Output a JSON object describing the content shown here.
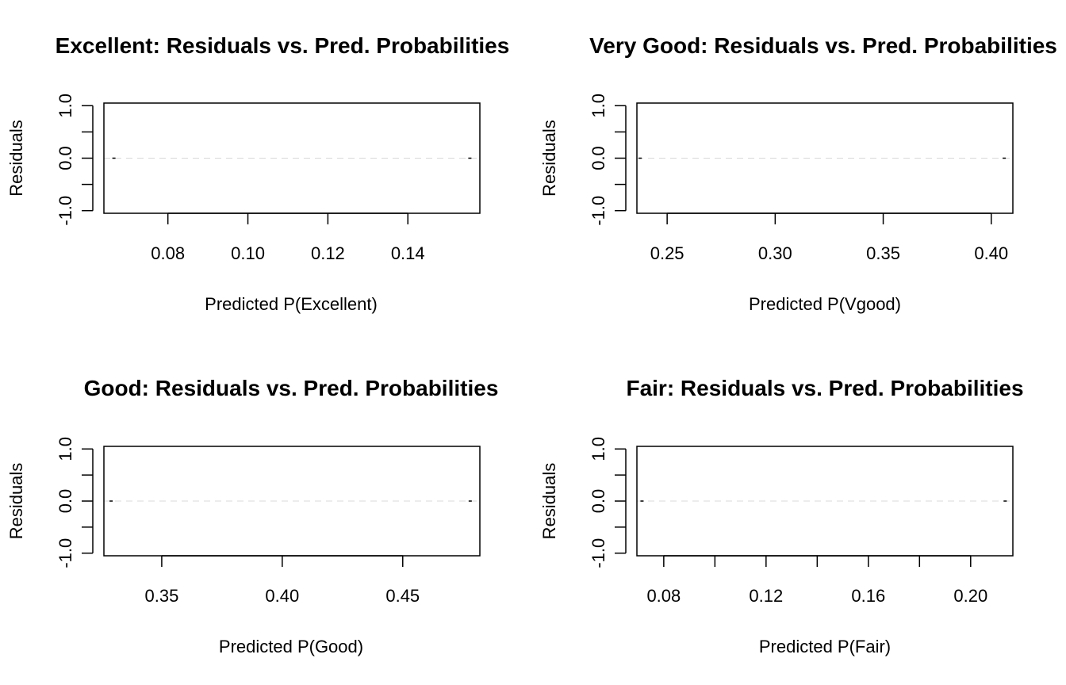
{
  "chart_data": [
    {
      "type": "scatter",
      "title": "Excellent: Residuals vs. Pred. Probabilities",
      "xlabel": "Predicted P(Excellent)",
      "ylabel": "Residuals",
      "xlim": [
        0.064,
        0.158
      ],
      "ylim": [
        -1.05,
        1.05
      ],
      "x_ticks": [
        0.08,
        0.1,
        0.12,
        0.14
      ],
      "x_tick_labels": [
        "0.08",
        "0.10",
        "0.12",
        "0.14"
      ],
      "minor_x_ticks": [],
      "y_ticks": [
        -1.0,
        -0.5,
        0.0,
        0.5,
        1.0
      ],
      "y_tick_labels": [
        "-1.0",
        "0.0",
        "1.0"
      ],
      "y_tick_label_values": [
        -1.0,
        0.0,
        1.0
      ],
      "reference_line_y": 0,
      "points": [
        {
          "x": 0.0665,
          "y": 0.0
        },
        {
          "x": 0.1555,
          "y": 0.0
        }
      ]
    },
    {
      "type": "scatter",
      "title": "Very Good: Residuals vs. Pred. Probabilities",
      "xlabel": "Predicted P(Vgood)",
      "ylabel": "Residuals",
      "xlim": [
        0.236,
        0.41
      ],
      "ylim": [
        -1.05,
        1.05
      ],
      "x_ticks": [
        0.25,
        0.3,
        0.35,
        0.4
      ],
      "x_tick_labels": [
        "0.25",
        "0.30",
        "0.35",
        "0.40"
      ],
      "minor_x_ticks": [],
      "y_ticks": [
        -1.0,
        -0.5,
        0.0,
        0.5,
        1.0
      ],
      "y_tick_labels": [
        "-1.0",
        "0.0",
        "1.0"
      ],
      "y_tick_label_values": [
        -1.0,
        0.0,
        1.0
      ],
      "reference_line_y": 0,
      "points": [
        {
          "x": 0.2375,
          "y": 0.0
        },
        {
          "x": 0.406,
          "y": 0.0
        }
      ]
    },
    {
      "type": "scatter",
      "title": "Good: Residuals vs. Pred. Probabilities",
      "xlabel": "Predicted P(Good)",
      "ylabel": "Residuals",
      "xlim": [
        0.326,
        0.482
      ],
      "ylim": [
        -1.05,
        1.05
      ],
      "x_ticks": [
        0.35,
        0.4,
        0.45
      ],
      "x_tick_labels": [
        "0.35",
        "0.40",
        "0.45"
      ],
      "minor_x_ticks": [],
      "y_ticks": [
        -1.0,
        -0.5,
        0.0,
        0.5,
        1.0
      ],
      "y_tick_labels": [
        "-1.0",
        "0.0",
        "1.0"
      ],
      "y_tick_label_values": [
        -1.0,
        0.0,
        1.0
      ],
      "reference_line_y": 0,
      "points": [
        {
          "x": 0.329,
          "y": 0.0
        },
        {
          "x": 0.478,
          "y": 0.0
        }
      ]
    },
    {
      "type": "scatter",
      "title": "Fair: Residuals vs. Pred. Probabilities",
      "xlabel": "Predicted P(Fair)",
      "ylabel": "Residuals",
      "xlim": [
        0.0695,
        0.2165
      ],
      "ylim": [
        -1.05,
        1.05
      ],
      "x_ticks": [
        0.08,
        0.12,
        0.16,
        0.2
      ],
      "x_tick_labels": [
        "0.08",
        "0.12",
        "0.16",
        "0.20"
      ],
      "minor_x_ticks": [
        0.1,
        0.14,
        0.18
      ],
      "y_ticks": [
        -1.0,
        -0.5,
        0.0,
        0.5,
        1.0
      ],
      "y_tick_labels": [
        "-1.0",
        "0.0",
        "1.0"
      ],
      "y_tick_label_values": [
        -1.0,
        0.0,
        1.0
      ],
      "reference_line_y": 0,
      "points": [
        {
          "x": 0.0715,
          "y": 0.0
        },
        {
          "x": 0.2135,
          "y": 0.0
        }
      ]
    }
  ]
}
